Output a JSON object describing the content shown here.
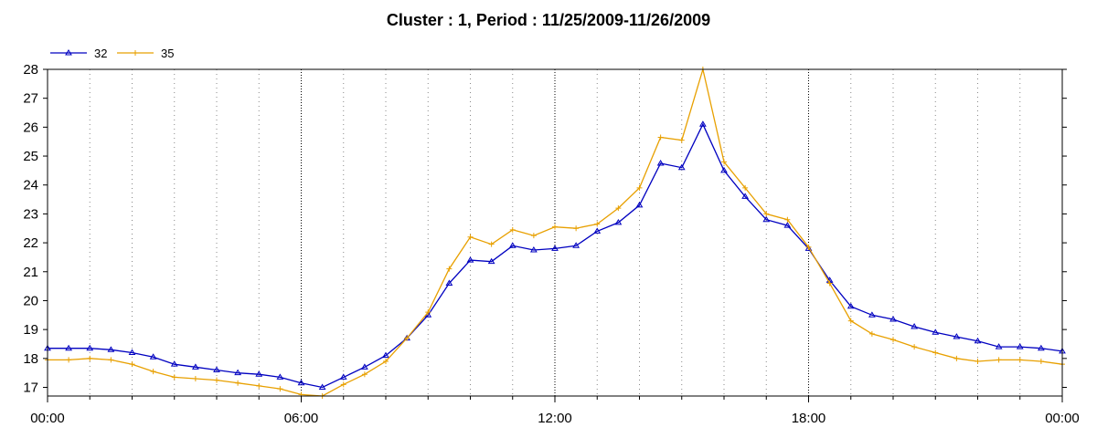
{
  "chart_data": {
    "type": "line",
    "title": "Cluster : 1, Period : 11/25/2009-11/26/2009",
    "xlabel": "",
    "ylabel": "",
    "x_tick_labels": [
      "00:00",
      "06:00",
      "12:00",
      "18:00",
      "00:00"
    ],
    "x_tick_hours": [
      0,
      6,
      12,
      18,
      24
    ],
    "y_ticks": [
      17,
      18,
      19,
      20,
      21,
      22,
      23,
      24,
      25,
      26,
      27,
      28
    ],
    "xlim_hours": [
      0,
      24
    ],
    "ylim": [
      16.7,
      28
    ],
    "grid": "vertical dotted",
    "legend_position": "top-left",
    "x_hours": [
      0,
      0.5,
      1,
      1.5,
      2,
      2.5,
      3,
      3.5,
      4,
      4.5,
      5,
      5.5,
      6,
      6.5,
      7,
      7.5,
      8,
      8.5,
      9,
      9.5,
      10,
      10.5,
      11,
      11.5,
      12,
      12.5,
      13,
      13.5,
      14,
      14.5,
      15,
      15.5,
      16,
      16.5,
      17,
      17.5,
      18,
      18.5,
      19,
      19.5,
      20,
      20.5,
      21,
      21.5,
      22,
      22.5,
      23,
      23.5,
      24
    ],
    "series": [
      {
        "name": "32",
        "color": "#0000c0",
        "marker": "triangle",
        "values": [
          18.35,
          18.35,
          18.35,
          18.3,
          18.2,
          18.05,
          17.8,
          17.7,
          17.6,
          17.5,
          17.45,
          17.35,
          17.15,
          17.0,
          17.35,
          17.7,
          18.1,
          18.7,
          19.5,
          20.6,
          21.4,
          21.35,
          21.9,
          21.75,
          21.8,
          21.9,
          22.4,
          22.7,
          23.3,
          24.75,
          24.6,
          26.1,
          24.5,
          23.6,
          22.8,
          22.6,
          21.8,
          20.7,
          19.8,
          19.5,
          19.35,
          19.1,
          18.9,
          18.75,
          18.6,
          18.4,
          18.4,
          18.35,
          18.25
        ]
      },
      {
        "name": "35",
        "color": "#e8a000",
        "marker": "plus",
        "values": [
          17.95,
          17.95,
          18.0,
          17.95,
          17.8,
          17.55,
          17.35,
          17.3,
          17.25,
          17.15,
          17.05,
          16.95,
          16.75,
          16.7,
          17.1,
          17.45,
          17.9,
          18.7,
          19.6,
          21.1,
          22.2,
          21.95,
          22.45,
          22.25,
          22.55,
          22.5,
          22.65,
          23.2,
          23.9,
          25.65,
          25.55,
          28.0,
          24.8,
          23.9,
          23.0,
          22.8,
          21.85,
          20.6,
          19.3,
          18.85,
          18.65,
          18.4,
          18.2,
          18.0,
          17.9,
          17.95,
          17.95,
          17.9,
          17.8
        ]
      }
    ]
  }
}
